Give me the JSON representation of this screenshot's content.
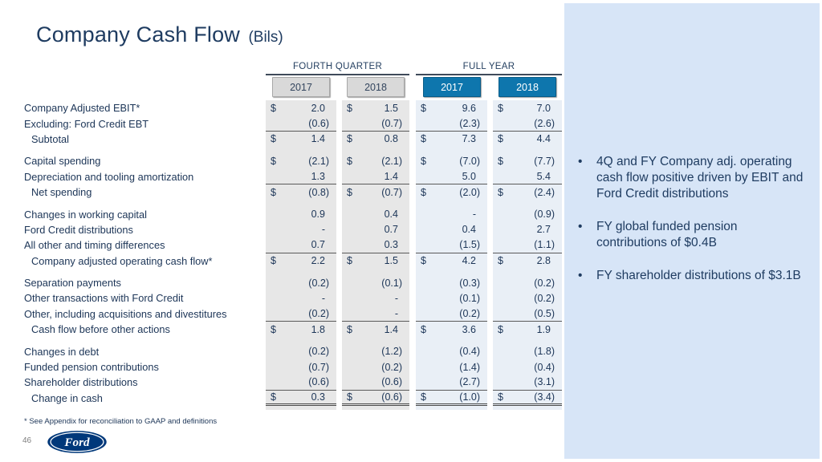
{
  "slide": {
    "title": "Company Cash Flow",
    "title_suffix": "(Bils)",
    "footnote": "* See Appendix for reconciliation to GAAP and definitions",
    "page_number": "46",
    "logo_text": "Ford"
  },
  "table": {
    "col_groups": [
      {
        "label": "FOURTH QUARTER",
        "years": [
          "2017",
          "2018"
        ]
      },
      {
        "label": "FULL YEAR",
        "years": [
          "2017",
          "2018"
        ]
      }
    ],
    "columns": [
      "Fourth Quarter 2017",
      "Fourth Quarter 2018",
      "Full Year 2017",
      "Full Year 2018"
    ],
    "rows": [
      {
        "label": "Company Adjusted EBIT*",
        "indent": false,
        "dollar": true,
        "values": [
          "2.0",
          "1.5",
          "9.6",
          "7.0"
        ],
        "rule": "none",
        "group": 0
      },
      {
        "label": "Excluding:  Ford Credit EBT",
        "indent": false,
        "dollar": false,
        "values": [
          "(0.6)",
          "(0.7)",
          "(2.3)",
          "(2.6)"
        ],
        "rule": "single",
        "group": 0
      },
      {
        "label": "Subtotal",
        "indent": true,
        "dollar": true,
        "values": [
          "1.4",
          "0.8",
          "7.3",
          "4.4"
        ],
        "rule": "none",
        "group": 0
      },
      {
        "label": "Capital spending",
        "indent": false,
        "dollar": true,
        "values": [
          "(2.1)",
          "(2.1)",
          "(7.0)",
          "(7.7)"
        ],
        "rule": "none",
        "group": 1
      },
      {
        "label": "Depreciation and tooling amortization",
        "indent": false,
        "dollar": false,
        "values": [
          "1.3",
          "1.4",
          "5.0",
          "5.4"
        ],
        "rule": "single",
        "group": 1
      },
      {
        "label": "Net spending",
        "indent": true,
        "dollar": true,
        "values": [
          "(0.8)",
          "(0.7)",
          "(2.0)",
          "(2.4)"
        ],
        "rule": "none",
        "group": 1
      },
      {
        "label": "Changes in working capital",
        "indent": false,
        "dollar": false,
        "values": [
          "0.9",
          "0.4",
          "-",
          "(0.9)"
        ],
        "rule": "none",
        "group": 2
      },
      {
        "label": "Ford Credit distributions",
        "indent": false,
        "dollar": false,
        "values": [
          "-",
          "0.7",
          "0.4",
          "2.7"
        ],
        "rule": "none",
        "group": 2
      },
      {
        "label": "All other and timing differences",
        "indent": false,
        "dollar": false,
        "values": [
          "0.7",
          "0.3",
          "(1.5)",
          "(1.1)"
        ],
        "rule": "single",
        "group": 2
      },
      {
        "label": "Company adjusted operating cash flow*",
        "indent": true,
        "dollar": true,
        "values": [
          "2.2",
          "1.5",
          "4.2",
          "2.8"
        ],
        "rule": "none",
        "group": 2
      },
      {
        "label": "Separation payments",
        "indent": false,
        "dollar": false,
        "values": [
          "(0.2)",
          "(0.1)",
          "(0.3)",
          "(0.2)"
        ],
        "rule": "none",
        "group": 3
      },
      {
        "label": "Other transactions with Ford Credit",
        "indent": false,
        "dollar": false,
        "values": [
          "-",
          "-",
          "(0.1)",
          "(0.2)"
        ],
        "rule": "none",
        "group": 3
      },
      {
        "label": "Other, including acquisitions and divestitures",
        "indent": false,
        "dollar": false,
        "values": [
          "(0.2)",
          "-",
          "(0.2)",
          "(0.5)"
        ],
        "rule": "single",
        "group": 3
      },
      {
        "label": "Cash flow before other actions",
        "indent": true,
        "dollar": true,
        "values": [
          "1.8",
          "1.4",
          "3.6",
          "1.9"
        ],
        "rule": "none",
        "group": 3
      },
      {
        "label": "Changes in debt",
        "indent": false,
        "dollar": false,
        "values": [
          "(0.2)",
          "(1.2)",
          "(0.4)",
          "(1.8)"
        ],
        "rule": "none",
        "group": 4
      },
      {
        "label": "Funded pension contributions",
        "indent": false,
        "dollar": false,
        "values": [
          "(0.7)",
          "(0.2)",
          "(1.4)",
          "(0.4)"
        ],
        "rule": "none",
        "group": 4
      },
      {
        "label": "Shareholder distributions",
        "indent": false,
        "dollar": false,
        "values": [
          "(0.6)",
          "(0.6)",
          "(2.7)",
          "(3.1)"
        ],
        "rule": "single",
        "group": 4
      },
      {
        "label": "Change in cash",
        "indent": true,
        "dollar": true,
        "values": [
          "0.3",
          "(0.6)",
          "(1.0)",
          "(3.4)"
        ],
        "rule": "double",
        "group": 4
      }
    ]
  },
  "sidebar": {
    "bullets": [
      "4Q and FY Company adj. operating cash flow positive driven by EBIT and Ford Credit distributions",
      "FY global funded pension contributions of $0.4B",
      "FY shareholder distributions of $3.1B"
    ]
  },
  "colors": {
    "title_text": "#1f3c61",
    "table_text": "#1c3557",
    "fq_year_box": "#d9d9d9",
    "fy_year_box": "#0e76ad",
    "fq_column_bg": "#e7e7e7",
    "fy_column_bg": "#e9eff6",
    "side_panel_bg": "#d7e5f7",
    "ford_logo_blue": "#00387a"
  }
}
